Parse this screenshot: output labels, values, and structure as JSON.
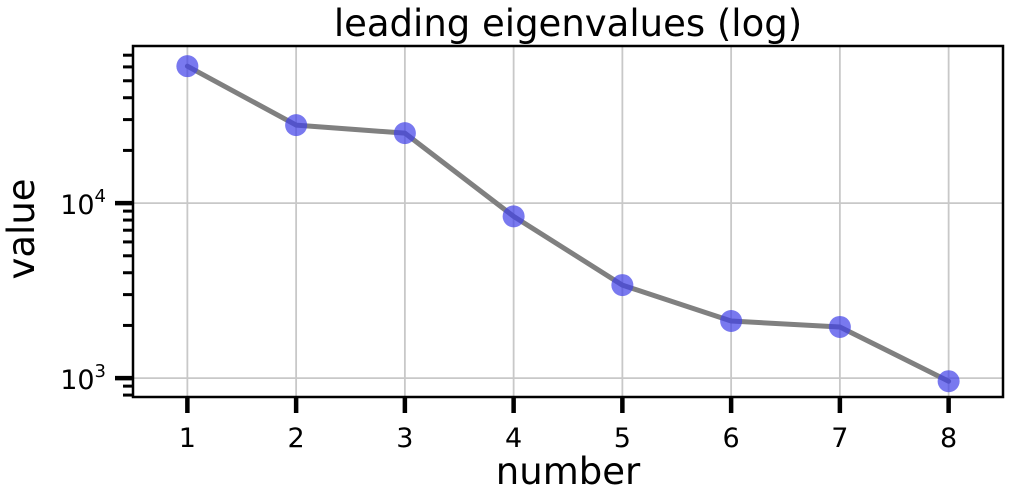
{
  "figure": {
    "title": "leading eigenvalues (log)",
    "xlabel": "number",
    "ylabel": "value"
  },
  "chart_data": {
    "type": "line",
    "title": "leading eigenvalues (log)",
    "xlabel": "number",
    "ylabel": "value",
    "yscale": "log",
    "x": [
      1,
      2,
      3,
      4,
      5,
      6,
      7,
      8
    ],
    "values": [
      60600,
      27900,
      25100,
      8400,
      3400,
      2120,
      1960,
      960
    ],
    "xlim": [
      0.5,
      8.5
    ],
    "ylim": [
      780,
      79000
    ],
    "x_tick_labels": [
      "1",
      "2",
      "3",
      "4",
      "5",
      "6",
      "7",
      "8"
    ],
    "y_major_ticks": [
      {
        "value": 1000,
        "base": "10",
        "exp": "3"
      },
      {
        "value": 10000,
        "base": "10",
        "exp": "4"
      }
    ],
    "grid": true,
    "legend_position": "none",
    "marker_opacity": 0.7,
    "colors": {
      "line": "#808080",
      "marker": "#4040e8",
      "grid": "#c8c8c8",
      "spine": "#000000",
      "text": "#000000"
    }
  }
}
